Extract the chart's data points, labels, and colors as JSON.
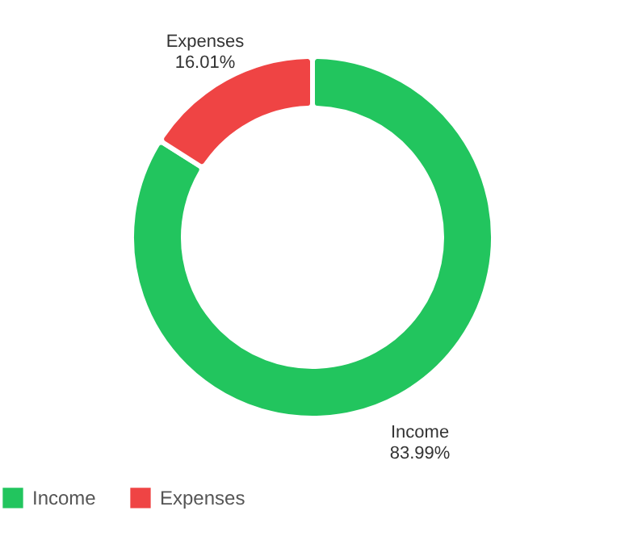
{
  "chart_data": {
    "type": "donut",
    "categories": [
      "Income",
      "Expenses"
    ],
    "values": [
      83.99,
      16.01
    ],
    "colors": [
      "#22c55e",
      "#ef4444"
    ],
    "value_labels": [
      "83.99%",
      "16.01%"
    ],
    "legend": "bottom"
  }
}
